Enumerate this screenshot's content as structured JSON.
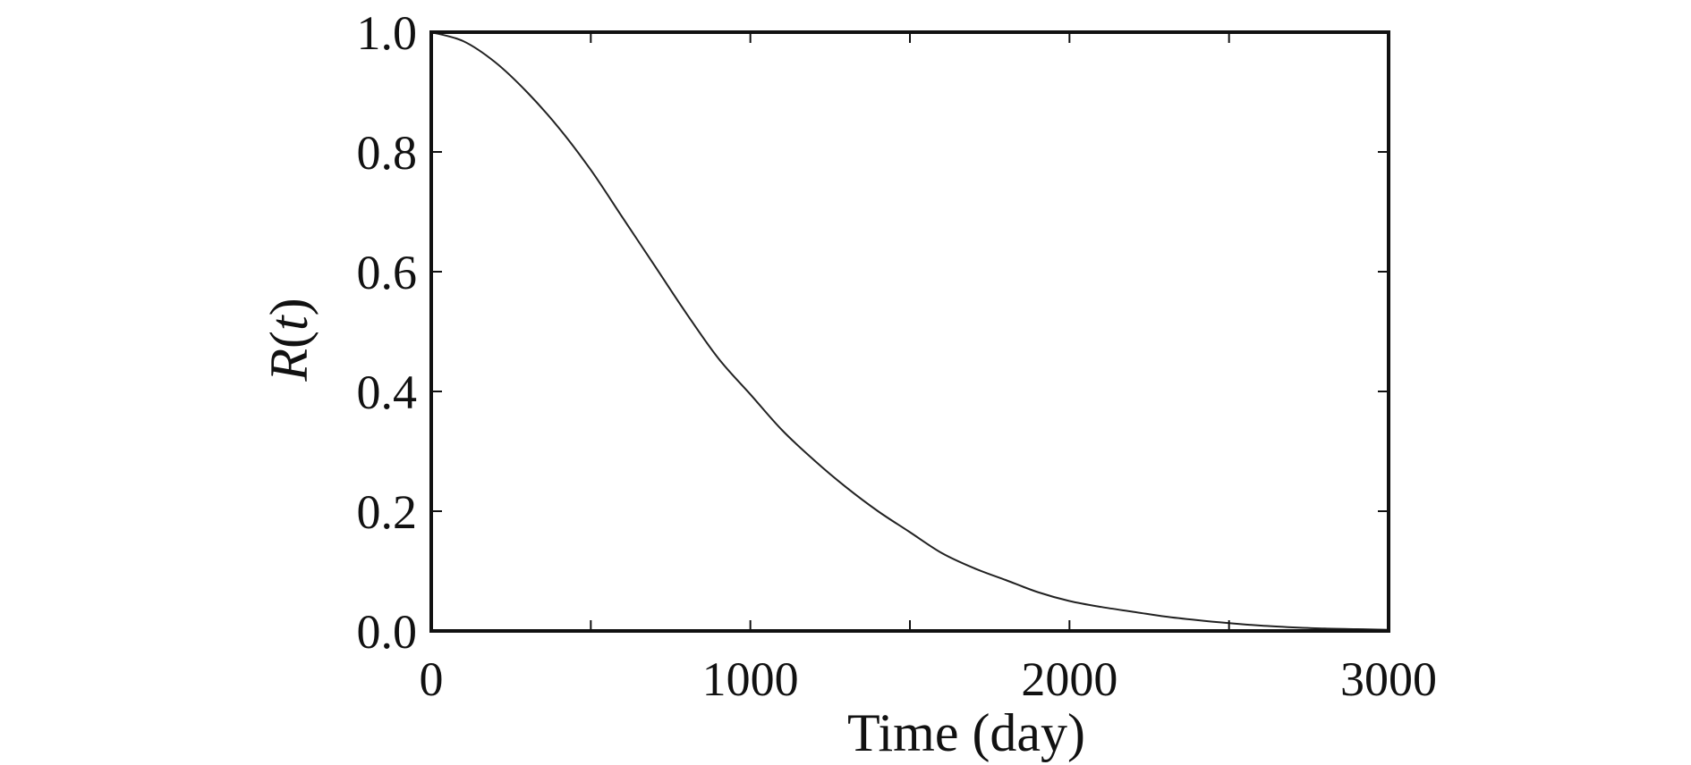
{
  "chart_data": {
    "type": "line",
    "title": "",
    "xlabel": "Time (day)",
    "ylabel": {
      "prefix": "R",
      "open": "(",
      "var": "t",
      "close": ")"
    },
    "xlim": [
      0,
      3000
    ],
    "ylim": [
      0.0,
      1.0
    ],
    "xticks": [
      0,
      500,
      1000,
      1500,
      2000,
      2500,
      3000
    ],
    "xtick_labels": [
      "0",
      "",
      "1000",
      "",
      "2000",
      "",
      "3000"
    ],
    "yticks": [
      0.0,
      0.2,
      0.4,
      0.6,
      0.8,
      1.0
    ],
    "ytick_labels": [
      "0.0",
      "0.2",
      "0.4",
      "0.6",
      "0.8",
      "1.0"
    ],
    "grid": false,
    "legend": "none",
    "colors": {
      "line": "#222222",
      "axes": "#111111"
    },
    "series": [
      {
        "x": [
          0,
          100,
          200,
          300,
          400,
          500,
          600,
          700,
          800,
          900,
          1000,
          1100,
          1200,
          1300,
          1400,
          1500,
          1600,
          1700,
          1800,
          1900,
          2000,
          2100,
          2200,
          2300,
          2400,
          2500,
          2600,
          2700,
          2800,
          2900,
          3000
        ],
        "y": [
          1.0,
          0.985,
          0.95,
          0.9,
          0.84,
          0.77,
          0.69,
          0.61,
          0.53,
          0.455,
          0.395,
          0.335,
          0.285,
          0.24,
          0.2,
          0.165,
          0.13,
          0.105,
          0.085,
          0.065,
          0.05,
          0.04,
          0.032,
          0.024,
          0.018,
          0.013,
          0.009,
          0.006,
          0.004,
          0.003,
          0.002
        ]
      }
    ]
  }
}
